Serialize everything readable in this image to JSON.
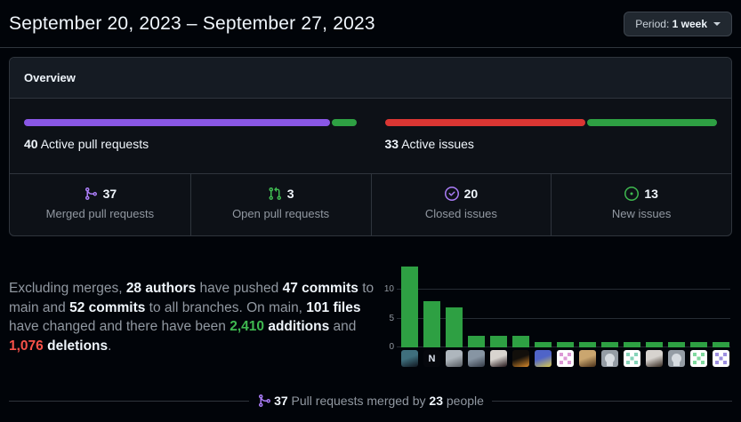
{
  "header": {
    "title": "September 20, 2023 – September 27, 2023",
    "period": {
      "label": "Period:",
      "value": "1 week",
      "icon": "dropdown-caret-icon"
    }
  },
  "overview": {
    "title": "Overview",
    "pull_requests_bar": {
      "count": "40",
      "label": "Active pull requests",
      "segments": [
        {
          "name": "merged",
          "color": "#8957e5",
          "pct": 92.5
        },
        {
          "name": "open",
          "color": "#2ea043",
          "pct": 7.5
        }
      ]
    },
    "issues_bar": {
      "count": "33",
      "label": "Active issues",
      "segments": [
        {
          "name": "closed",
          "color": "#da3633",
          "pct": 60.6
        },
        {
          "name": "new",
          "color": "#2ea043",
          "pct": 39.4
        }
      ]
    },
    "stats": [
      {
        "value": "37",
        "label": "Merged pull requests",
        "icon": "git-merge-icon",
        "icon_color": "#ab7df8"
      },
      {
        "value": "3",
        "label": "Open pull requests",
        "icon": "git-pull-request-icon",
        "icon_color": "#3fb950"
      },
      {
        "value": "20",
        "label": "Closed issues",
        "icon": "issue-closed-icon",
        "icon_color": "#ab7df8"
      },
      {
        "value": "13",
        "label": "New issues",
        "icon": "issue-opened-icon",
        "icon_color": "#3fb950"
      }
    ]
  },
  "summary": {
    "segments": [
      {
        "text": "Excluding merges, ",
        "style": "muted"
      },
      {
        "text": "28 authors",
        "style": "bold"
      },
      {
        "text": " have pushed ",
        "style": "muted"
      },
      {
        "text": "47 commits",
        "style": "bold"
      },
      {
        "text": " to main and ",
        "style": "muted"
      },
      {
        "text": "52 commits",
        "style": "bold"
      },
      {
        "text": " to all branches. On main, ",
        "style": "muted"
      },
      {
        "text": "101 files",
        "style": "bold"
      },
      {
        "text": " have changed and there have been ",
        "style": "muted"
      },
      {
        "text": "2,410",
        "style": "green-bold"
      },
      {
        "text": " additions",
        "style": "bold"
      },
      {
        "text": " and ",
        "style": "muted"
      },
      {
        "text": "1,076",
        "style": "red-bold"
      },
      {
        "text": " deletions",
        "style": "bold"
      },
      {
        "text": ".",
        "style": "muted"
      }
    ]
  },
  "chart_data": {
    "type": "bar",
    "values": [
      14,
      8,
      7,
      2,
      2,
      2,
      1,
      1,
      1,
      1,
      1,
      1,
      1,
      1,
      1
    ],
    "categories_note": "x-axis shows one avatar per contributor (15 contributors)",
    "yticks": [
      0,
      5,
      10
    ],
    "ylim": [
      0,
      15
    ],
    "bar_color": "#2ea043",
    "grid": true,
    "legend": "none"
  },
  "contributors": [
    {
      "kind": "photo",
      "colors": [
        "#3f6f7d",
        "#10161f"
      ]
    },
    {
      "kind": "logo",
      "colors": [
        "#05070c"
      ],
      "letter": "N",
      "letter_color": "#dfe6f1"
    },
    {
      "kind": "photo",
      "colors": [
        "#aeb6bd",
        "#555a60"
      ]
    },
    {
      "kind": "photo",
      "colors": [
        "#8795a3",
        "#333a46"
      ]
    },
    {
      "kind": "photo",
      "colors": [
        "#d8d4cf",
        "#221418"
      ]
    },
    {
      "kind": "photo",
      "colors": [
        "#120f0b",
        "#d98a2b"
      ]
    },
    {
      "kind": "photo",
      "colors": [
        "#4f64c8",
        "#d9c94f"
      ]
    },
    {
      "kind": "identicon",
      "colors": [
        "#ffffff",
        "#dd99d6"
      ]
    },
    {
      "kind": "photo",
      "colors": [
        "#caa66f",
        "#4a3018"
      ]
    },
    {
      "kind": "octocat",
      "colors": [
        "#959da5",
        "#d6dbe0"
      ]
    },
    {
      "kind": "identicon",
      "colors": [
        "#ffffff",
        "#86d3b9"
      ]
    },
    {
      "kind": "photo",
      "colors": [
        "#d7d3cf",
        "#33281f"
      ]
    },
    {
      "kind": "octocat",
      "colors": [
        "#959da5",
        "#d6dbe0"
      ]
    },
    {
      "kind": "identicon",
      "colors": [
        "#ffffff",
        "#7fd99e"
      ]
    },
    {
      "kind": "identicon",
      "colors": [
        "#ffffff",
        "#9d8fe0"
      ]
    }
  ],
  "footer": {
    "icon": "git-merge-icon",
    "icon_color": "#ab7df8",
    "merged": "37",
    "middle": " Pull requests merged by ",
    "people": "23",
    "end": " people"
  }
}
